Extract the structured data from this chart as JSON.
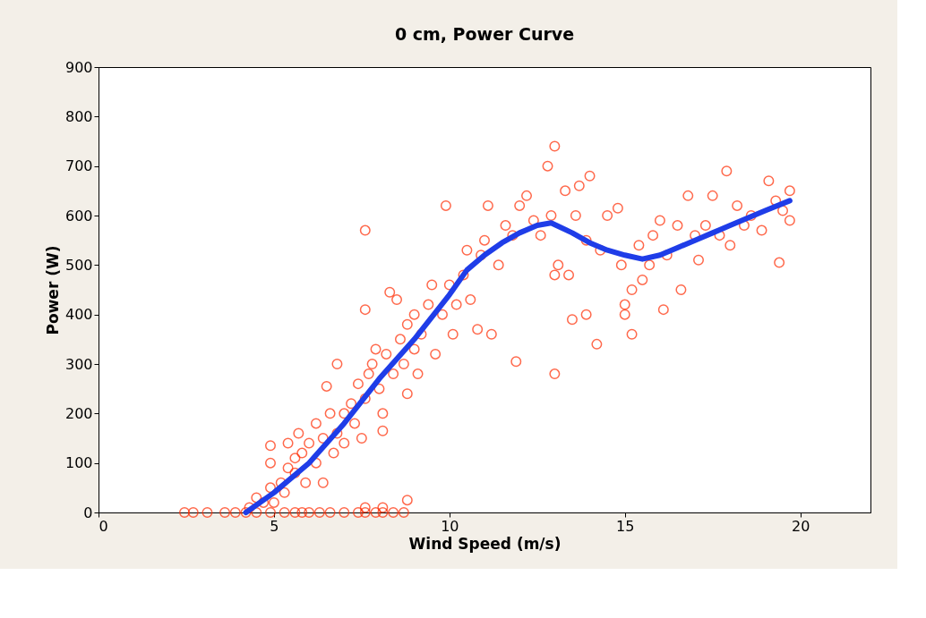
{
  "chart_data": {
    "type": "scatter",
    "title": "0 cm, Power Curve",
    "xlabel": "Wind Speed (m/s)",
    "ylabel": "Power (W)",
    "xlim": [
      0,
      22
    ],
    "xticks": [
      0,
      5,
      10,
      15,
      20
    ],
    "ylim": [
      0,
      900
    ],
    "yticks": [
      0,
      100,
      200,
      300,
      400,
      500,
      600,
      700,
      800,
      900
    ],
    "grid": false,
    "series": [
      {
        "color": "#ff2a00",
        "marker": "circle",
        "x": [
          2.45,
          2.7,
          3.1,
          3.6,
          3.9,
          4.2,
          4.5,
          4.9,
          5.3,
          5.6,
          5.8,
          6.0,
          6.3,
          6.6,
          7.0,
          7.4,
          7.6,
          7.9,
          8.1,
          8.4,
          8.7,
          7.6,
          8.1,
          8.8,
          4.3,
          4.5,
          4.7,
          4.9,
          4.9,
          4.9,
          5.0,
          5.2,
          5.3,
          5.4,
          5.4,
          5.6,
          5.6,
          5.7,
          5.8,
          5.9,
          6.0,
          6.2,
          6.2,
          6.4,
          6.4,
          6.5,
          6.6,
          6.7,
          6.8,
          6.8,
          7.0,
          7.0,
          7.2,
          7.3,
          7.4,
          7.5,
          7.6,
          7.6,
          7.6,
          7.7,
          7.8,
          7.9,
          8.0,
          8.1,
          8.1,
          8.2,
          8.3,
          8.4,
          8.5,
          8.6,
          8.7,
          8.8,
          8.8,
          9.0,
          9.0,
          9.1,
          9.2,
          9.4,
          9.5,
          9.6,
          9.8,
          9.9,
          10.0,
          10.1,
          10.2,
          10.4,
          10.5,
          10.6,
          10.8,
          10.9,
          11.0,
          11.1,
          11.2,
          11.4,
          11.6,
          11.8,
          12.0,
          11.9,
          12.2,
          12.4,
          12.6,
          12.8,
          12.9,
          13.0,
          13.0,
          13.0,
          13.1,
          13.3,
          13.4,
          13.5,
          13.6,
          13.7,
          13.9,
          13.9,
          14.0,
          14.2,
          14.3,
          14.5,
          14.8,
          14.9,
          15.0,
          15.0,
          15.2,
          15.2,
          15.4,
          15.5,
          15.7,
          15.8,
          16.0,
          16.1,
          16.2,
          16.5,
          16.6,
          16.8,
          17.0,
          17.1,
          17.3,
          17.5,
          17.7,
          17.9,
          18.0,
          18.2,
          18.4,
          18.6,
          18.9,
          19.1,
          19.3,
          19.4,
          19.5,
          19.7,
          19.7
        ],
        "values": [
          0,
          0,
          0,
          0,
          0,
          0,
          0,
          0,
          0,
          0,
          0,
          0,
          0,
          0,
          0,
          0,
          0,
          0,
          0,
          0,
          0,
          10,
          10,
          25,
          10,
          30,
          20,
          50,
          100,
          135,
          20,
          60,
          40,
          90,
          140,
          80,
          110,
          160,
          120,
          60,
          140,
          100,
          180,
          60,
          150,
          255,
          200,
          120,
          300,
          160,
          200,
          140,
          220,
          180,
          260,
          150,
          230,
          410,
          570,
          280,
          300,
          330,
          250,
          200,
          165,
          320,
          445,
          280,
          430,
          350,
          300,
          380,
          240,
          400,
          330,
          280,
          360,
          420,
          460,
          320,
          400,
          620,
          460,
          360,
          420,
          480,
          530,
          430,
          370,
          520,
          550,
          620,
          360,
          500,
          580,
          560,
          620,
          305,
          640,
          590,
          560,
          700,
          600,
          740,
          480,
          280,
          500,
          650,
          480,
          390,
          600,
          660,
          550,
          400,
          680,
          340,
          530,
          600,
          615,
          500,
          400,
          420,
          450,
          360,
          540,
          470,
          500,
          560,
          590,
          410,
          520,
          580,
          450,
          640,
          560,
          510,
          580,
          640,
          560,
          690,
          540,
          620,
          580,
          600,
          570,
          670,
          630,
          505,
          610,
          650,
          590
        ]
      },
      {
        "type": "line",
        "color": "#1f3de8",
        "marker": "none",
        "x": [
          4.2,
          5,
          6,
          7,
          8,
          9,
          10,
          10.5,
          11,
          11.5,
          12,
          12.5,
          12.9,
          13.5,
          14,
          14.5,
          15,
          15.5,
          16,
          16.5,
          17,
          17.5,
          18,
          18.5,
          19,
          19.7
        ],
        "values": [
          0,
          40,
          100,
          180,
          270,
          350,
          440,
          490,
          520,
          545,
          565,
          580,
          585,
          565,
          545,
          530,
          520,
          512,
          520,
          535,
          550,
          565,
          580,
          595,
          610,
          630
        ]
      }
    ]
  }
}
